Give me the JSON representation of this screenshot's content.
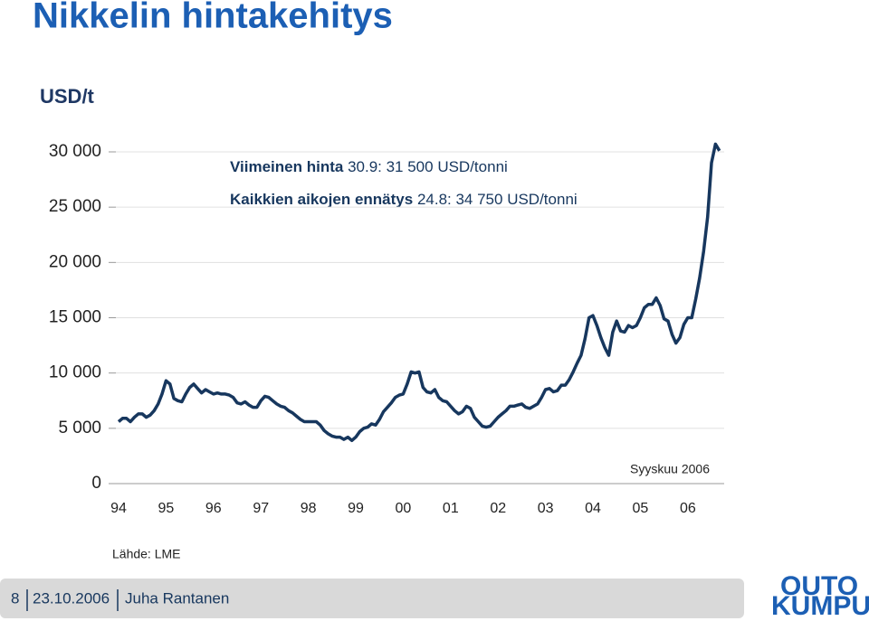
{
  "title": "Nikkelin hintakehitys",
  "chart_data": {
    "type": "line",
    "y_label": "USD/t",
    "annotations": [
      {
        "bold": "Viimeinen hinta",
        "text": "30.9: 31 500 USD/tonni"
      },
      {
        "bold": "Kaikkien aikojen ennätys",
        "text": "24.8: 34 750 USD/tonni"
      },
      {
        "text": "Syyskuu 2006"
      }
    ],
    "categories": [
      "94",
      null,
      null,
      null,
      null,
      null,
      null,
      null,
      null,
      null,
      null,
      null,
      "95",
      null,
      null,
      null,
      null,
      null,
      null,
      null,
      null,
      null,
      null,
      null,
      "96",
      null,
      null,
      null,
      null,
      null,
      null,
      null,
      null,
      null,
      null,
      null,
      "97",
      null,
      null,
      null,
      null,
      null,
      null,
      null,
      null,
      null,
      null,
      null,
      "98",
      null,
      null,
      null,
      null,
      null,
      null,
      null,
      null,
      null,
      null,
      null,
      "99",
      null,
      null,
      null,
      null,
      null,
      null,
      null,
      null,
      null,
      null,
      null,
      "00",
      null,
      null,
      null,
      null,
      null,
      null,
      null,
      null,
      null,
      null,
      null,
      "01",
      null,
      null,
      null,
      null,
      null,
      null,
      null,
      null,
      null,
      null,
      null,
      "02",
      null,
      null,
      null,
      null,
      null,
      null,
      null,
      null,
      null,
      null,
      null,
      "03",
      null,
      null,
      null,
      null,
      null,
      null,
      null,
      null,
      null,
      null,
      null,
      "04",
      null,
      null,
      null,
      null,
      null,
      null,
      null,
      null,
      null,
      null,
      null,
      "05",
      null,
      null,
      null,
      null,
      null,
      null,
      null,
      null,
      null,
      null,
      null,
      "06",
      null,
      null,
      null,
      null,
      null,
      null,
      null,
      null
    ],
    "series": [
      {
        "color": "#17375e",
        "values": [
          5600,
          5900,
          5900,
          5600,
          6000,
          6300,
          6300,
          6000,
          6200,
          6600,
          7200,
          8100,
          9300,
          9000,
          7700,
          7500,
          7400,
          8100,
          8700,
          9000,
          8600,
          8200,
          8500,
          8300,
          8100,
          8200,
          8100,
          8100,
          8000,
          7800,
          7300,
          7200,
          7400,
          7100,
          6900,
          6900,
          7500,
          7900,
          7800,
          7500,
          7200,
          7000,
          6900,
          6600,
          6400,
          6100,
          5800,
          5600,
          5600,
          5600,
          5600,
          5300,
          4800,
          4500,
          4300,
          4200,
          4200,
          4000,
          4200,
          3900,
          4200,
          4700,
          5000,
          5100,
          5400,
          5300,
          5800,
          6500,
          6900,
          7300,
          7800,
          8000,
          8100,
          9000,
          10100,
          10000,
          10100,
          8700,
          8300,
          8200,
          8500,
          7800,
          7500,
          7400,
          7000,
          6600,
          6300,
          6500,
          7000,
          6800,
          6000,
          5600,
          5200,
          5100,
          5200,
          5600,
          6000,
          6300,
          6600,
          7000,
          7000,
          7100,
          7200,
          6900,
          6800,
          7000,
          7200,
          7800,
          8500,
          8600,
          8300,
          8400,
          8900,
          8900,
          9400,
          10100,
          10900,
          11600,
          13100,
          15000,
          15200,
          14300,
          13200,
          12300,
          11600,
          13700,
          14700,
          13800,
          13700,
          14300,
          14100,
          14300,
          15000,
          15900,
          16200,
          16200,
          16800,
          16100,
          14900,
          14700,
          13500,
          12700,
          13200,
          14400,
          15000,
          15000,
          16700,
          18600,
          21000,
          24100,
          29000,
          30700,
          30100
        ]
      }
    ],
    "ylim": [
      0,
      30000
    ],
    "yticks": [
      0,
      {
        "value": 5000,
        "label": "5 000"
      },
      {
        "value": 10000,
        "label": "10 000"
      },
      {
        "value": 15000,
        "label": "15 000"
      },
      {
        "value": 20000,
        "label": "20 000"
      },
      {
        "value": 25000,
        "label": "25 000"
      },
      {
        "value": 30000,
        "label": "30 000"
      }
    ],
    "grid": true
  },
  "source": "Lähde: LME",
  "footer": {
    "page": "8",
    "date": "23.10.2006",
    "author": "Juha Rantanen"
  },
  "logo": [
    "OUTO",
    "KUMPU"
  ]
}
